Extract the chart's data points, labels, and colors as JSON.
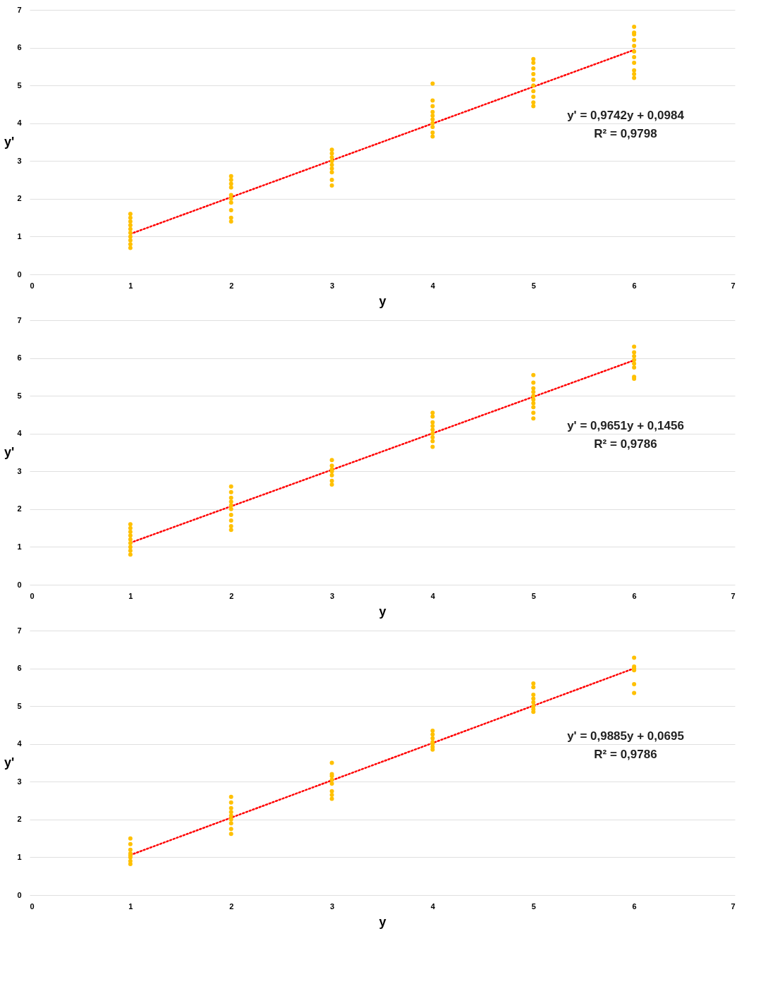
{
  "chart_data": [
    {
      "type": "scatter",
      "xlabel": "y",
      "ylabel": "y'",
      "xlim": [
        0,
        7
      ],
      "ylim": [
        0,
        7
      ],
      "xticks": [
        0,
        1,
        2,
        3,
        4,
        5,
        6,
        7
      ],
      "yticks": [
        0,
        1,
        2,
        3,
        4,
        5,
        6,
        7
      ],
      "grid": "y",
      "legend": false,
      "annotations": [
        "y' = 0,9742y + 0,0984",
        "R² = 0,9798"
      ],
      "series": [
        {
          "marker": "circle",
          "color": "#ffc000",
          "x": [
            1,
            1,
            1,
            1,
            1,
            1,
            1,
            1,
            1,
            1,
            2,
            2,
            2,
            2,
            2,
            2,
            2,
            2,
            2,
            2,
            3,
            3,
            3,
            3,
            3,
            3,
            3,
            3,
            3,
            4,
            4,
            4,
            4,
            4,
            4,
            4,
            4,
            4,
            4,
            5,
            5,
            5,
            5,
            5,
            5,
            5,
            5,
            5,
            5,
            6,
            6,
            6,
            6,
            6,
            6,
            6,
            6,
            6,
            6,
            6
          ],
          "values": [
            0.7,
            0.8,
            0.9,
            1.0,
            1.1,
            1.2,
            1.3,
            1.4,
            1.5,
            1.6,
            1.4,
            1.5,
            1.7,
            1.9,
            2.0,
            2.1,
            2.3,
            2.4,
            2.5,
            2.6,
            2.35,
            2.5,
            2.7,
            2.8,
            2.9,
            3.0,
            3.1,
            3.2,
            3.3,
            3.65,
            3.75,
            3.9,
            4.0,
            4.1,
            4.2,
            4.3,
            4.45,
            4.6,
            5.05,
            4.45,
            4.55,
            4.7,
            4.85,
            5.0,
            5.15,
            5.3,
            5.45,
            5.6,
            5.7,
            5.2,
            5.3,
            5.4,
            5.6,
            5.75,
            5.9,
            6.05,
            6.2,
            6.35,
            6.4,
            6.55
          ]
        },
        {
          "type": "line",
          "marker": "none",
          "line_style": "dotted",
          "color": "#ff0000",
          "x": [
            1,
            6
          ],
          "values": [
            1.07,
            5.94
          ]
        }
      ]
    },
    {
      "type": "scatter",
      "xlabel": "y",
      "ylabel": "y'",
      "xlim": [
        0,
        7
      ],
      "ylim": [
        0,
        7
      ],
      "xticks": [
        0,
        1,
        2,
        3,
        4,
        5,
        6,
        7
      ],
      "yticks": [
        0,
        1,
        2,
        3,
        4,
        5,
        6,
        7
      ],
      "grid": "y",
      "legend": false,
      "annotations": [
        "y' = 0,9651y + 0,1456",
        "R² = 0,9786"
      ],
      "series": [
        {
          "marker": "circle",
          "color": "#ffc000",
          "x": [
            1,
            1,
            1,
            1,
            1,
            1,
            1,
            1,
            1,
            2,
            2,
            2,
            2,
            2,
            2,
            2,
            2,
            2,
            2,
            3,
            3,
            3,
            3,
            3,
            3,
            3,
            4,
            4,
            4,
            4,
            4,
            4,
            4,
            4,
            4,
            5,
            5,
            5,
            5,
            5,
            5,
            5,
            5,
            5,
            5,
            6,
            6,
            6,
            6,
            6,
            6,
            6,
            6
          ],
          "values": [
            0.8,
            0.9,
            1.0,
            1.1,
            1.2,
            1.3,
            1.4,
            1.5,
            1.6,
            1.45,
            1.55,
            1.7,
            1.85,
            2.0,
            2.1,
            2.2,
            2.3,
            2.45,
            2.6,
            2.65,
            2.75,
            2.9,
            3.0,
            3.05,
            3.15,
            3.3,
            3.65,
            3.8,
            3.9,
            4.0,
            4.1,
            4.2,
            4.3,
            4.45,
            4.55,
            4.4,
            4.55,
            4.7,
            4.8,
            4.9,
            5.0,
            5.1,
            5.2,
            5.35,
            5.55,
            5.45,
            5.5,
            5.75,
            5.85,
            5.95,
            6.05,
            6.15,
            6.3
          ]
        },
        {
          "type": "line",
          "marker": "none",
          "line_style": "dotted",
          "color": "#ff0000",
          "x": [
            1,
            6
          ],
          "values": [
            1.11,
            5.94
          ]
        }
      ]
    },
    {
      "type": "scatter",
      "xlabel": "y",
      "ylabel": "y'",
      "xlim": [
        0,
        7
      ],
      "ylim": [
        0,
        7
      ],
      "xticks": [
        0,
        1,
        2,
        3,
        4,
        5,
        6,
        7
      ],
      "yticks": [
        0,
        1,
        2,
        3,
        4,
        5,
        6,
        7
      ],
      "grid": "y",
      "legend": false,
      "annotations": [
        "y' = 0,9885y + 0,0695",
        "R² = 0,9786"
      ],
      "series": [
        {
          "marker": "circle",
          "color": "#ffc000",
          "x": [
            1,
            1,
            1,
            1,
            1,
            1,
            1,
            1,
            2,
            2,
            2,
            2,
            2,
            2,
            2,
            2,
            2,
            3,
            3,
            3,
            3,
            3,
            3,
            3,
            3,
            4,
            4,
            4,
            4,
            4,
            4,
            4,
            5,
            5,
            5,
            5,
            5,
            5,
            5,
            5,
            6,
            6,
            6,
            6,
            6,
            6
          ],
          "values": [
            0.82,
            0.9,
            1.0,
            1.05,
            1.1,
            1.2,
            1.35,
            1.5,
            1.62,
            1.75,
            1.9,
            2.0,
            2.1,
            2.2,
            2.3,
            2.45,
            2.6,
            2.55,
            2.65,
            2.75,
            2.95,
            3.05,
            3.15,
            3.2,
            3.5,
            3.85,
            3.92,
            4.0,
            4.05,
            4.15,
            4.25,
            4.35,
            4.85,
            4.92,
            5.0,
            5.1,
            5.2,
            5.3,
            5.5,
            5.6,
            5.35,
            5.58,
            5.95,
            6.0,
            6.05,
            6.28
          ]
        },
        {
          "type": "line",
          "marker": "none",
          "line_style": "dotted",
          "color": "#ff0000",
          "x": [
            1,
            6
          ],
          "values": [
            1.06,
            6.0
          ]
        }
      ]
    }
  ]
}
